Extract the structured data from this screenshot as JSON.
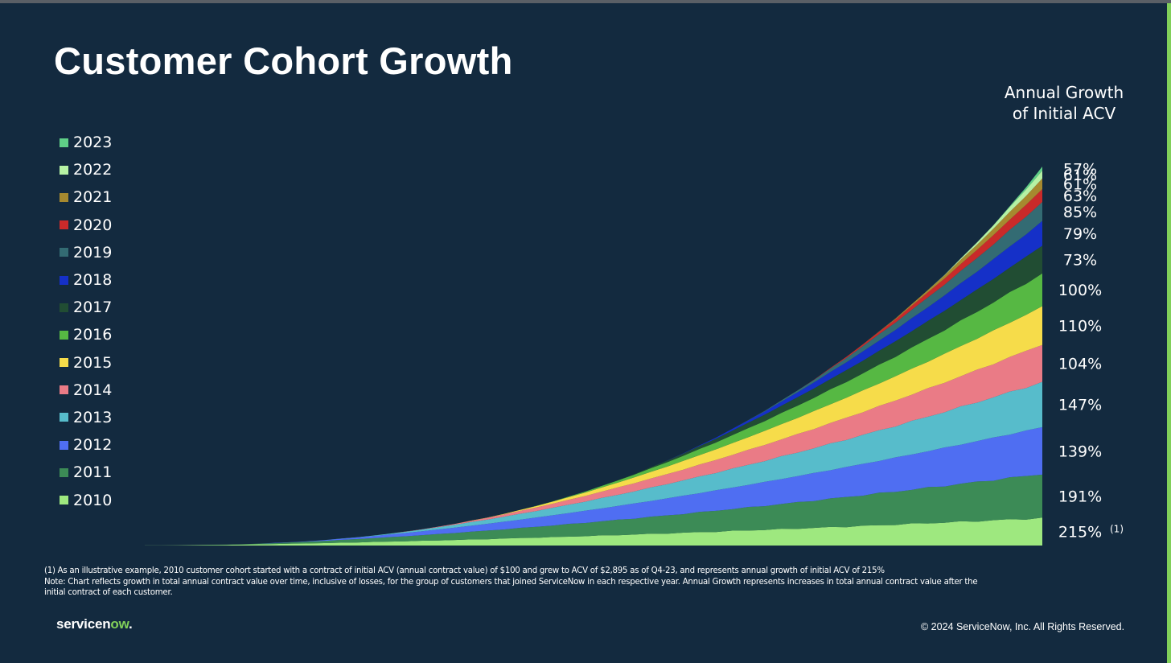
{
  "slide": {
    "title": "Customer Cohort Growth",
    "growth_header_line1": "Annual Growth",
    "growth_header_line2": "of Initial ACV",
    "footnote_line1": "(1) As an illustrative example, 2010 customer cohort started with a contract of initial ACV (annual contract value) of $100 and grew to ACV of $2,895 as of Q4-23, and represents annual growth of initial ACV of 215%",
    "footnote_line2": "Note: Chart reflects growth in total annual contract value over time, inclusive of losses, for the group of customers that joined ServiceNow in each respective year.  Annual Growth represents increases in total annual contract value after the",
    "footnote_line3": "initial contract of each customer.",
    "logo_part1": "servicen",
    "logo_part2": "ow",
    "logo_part3": ".",
    "copyright": "© 2024 ServiceNow, Inc. All Rights Reserved.",
    "accent_color": "#81d05a",
    "background_color": "#132a3f"
  },
  "chart_data": {
    "type": "area",
    "stacked": true,
    "title": "Customer Cohort Growth",
    "annotation_title": "Annual Growth of Initial ACV",
    "note_marker": "(1)",
    "note_marker_series": "2010",
    "x_start": "Q1-10",
    "x_end": "Q4-23",
    "y_axis_shown": false,
    "grid": false,
    "legend_position": "left",
    "series": [
      {
        "name": "2010",
        "color": "#9ee87f",
        "annual_growth": "215%",
        "start_index": 0,
        "end_value": 34
      },
      {
        "name": "2011",
        "color": "#3c8b56",
        "annual_growth": "191%",
        "start_index": 4,
        "end_value": 55
      },
      {
        "name": "2012",
        "color": "#4f6ef2",
        "annual_growth": "139%",
        "start_index": 8,
        "end_value": 58
      },
      {
        "name": "2013",
        "color": "#57bccb",
        "annual_growth": "147%",
        "start_index": 12,
        "end_value": 56
      },
      {
        "name": "2014",
        "color": "#ea7b86",
        "annual_growth": "104%",
        "start_index": 16,
        "end_value": 47
      },
      {
        "name": "2015",
        "color": "#f6dc4a",
        "annual_growth": "110%",
        "start_index": 20,
        "end_value": 47
      },
      {
        "name": "2016",
        "color": "#56b843",
        "annual_growth": "100%",
        "start_index": 24,
        "end_value": 41
      },
      {
        "name": "2017",
        "color": "#214d33",
        "annual_growth": "73%",
        "start_index": 28,
        "end_value": 35
      },
      {
        "name": "2018",
        "color": "#1530c8",
        "annual_growth": "79%",
        "start_index": 32,
        "end_value": 30
      },
      {
        "name": "2019",
        "color": "#336b73",
        "annual_growth": "85%",
        "start_index": 36,
        "end_value": 24
      },
      {
        "name": "2020",
        "color": "#c92a2a",
        "annual_growth": "63%",
        "start_index": 40,
        "end_value": 16
      },
      {
        "name": "2021",
        "color": "#a6892f",
        "annual_growth": "61%",
        "start_index": 44,
        "end_value": 13
      },
      {
        "name": "2022",
        "color": "#b6f2a4",
        "annual_growth": "61%",
        "start_index": 48,
        "end_value": 10
      },
      {
        "name": "2023",
        "color": "#5fcf87",
        "annual_growth": "57%",
        "start_index": 52,
        "end_value": 5
      }
    ],
    "quarters": 56
  }
}
